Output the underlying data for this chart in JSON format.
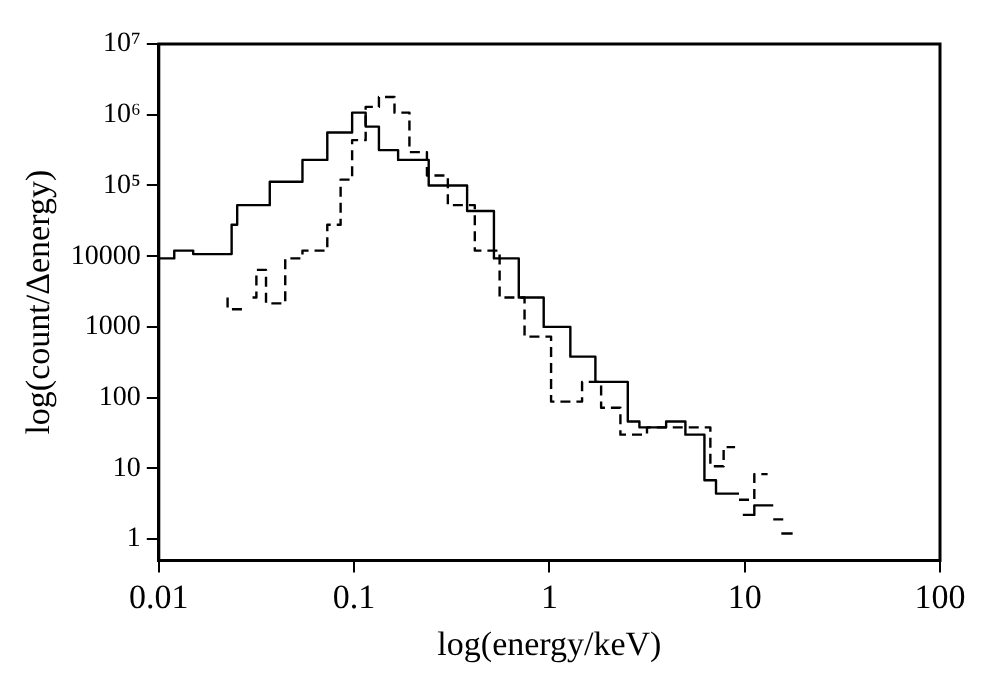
{
  "chart_data": {
    "type": "step",
    "xlabel": "log(energy/keV)",
    "ylabel": "log(count/Δenergy)",
    "log": "xy",
    "grid": false,
    "legend": false,
    "marker": "none",
    "xlim": [
      0.01,
      100
    ],
    "xticks": [
      0.01,
      0.1,
      1,
      10,
      100
    ],
    "ylim": [
      0.5,
      10000000
    ],
    "yticks": [
      1,
      10,
      100,
      1000,
      10000,
      {
        "value": 100000,
        "label": "10⁵"
      },
      {
        "value": 1000000,
        "label": "10⁶"
      },
      {
        "value": 10000000,
        "label": "10⁷"
      }
    ],
    "series": [
      {
        "color": "#000000",
        "line_style": "solid",
        "x": [
          0.01,
          0.012,
          0.015,
          0.0236,
          0.0252,
          0.037,
          0.0544,
          0.0729,
          0.0977,
          0.1146,
          0.134,
          0.168,
          0.241,
          0.379,
          0.52,
          0.697,
          0.935,
          1.28,
          1.72,
          2.52,
          2.89,
          3.96,
          4.97,
          6.22,
          7.13,
          9.35,
          9.78,
          11.2,
          14,
          15.4,
          17.6
        ],
        "values": [
          9300,
          9300,
          12000,
          10700,
          27800,
          52700,
          113000,
          230000,
          560000,
          1070000,
          680000,
          316000,
          230000,
          100000,
          43600,
          9300,
          2600,
          1000,
          380,
          167,
          46,
          38,
          46,
          30,
          6.8,
          4.4,
          null,
          2.2,
          3,
          null,
          1.2
        ]
      },
      {
        "color": "#000000",
        "line_style": "dashed",
        "x": [
          0.0225,
          0.0283,
          0.0302,
          0.0316,
          0.0354,
          0.0444,
          0.0544,
          0.0729,
          0.0853,
          0.0977,
          0.1146,
          0.134,
          0.161,
          0.192,
          0.236,
          0.302,
          0.415,
          0.556,
          0.746,
          1.02,
          1.47,
          1.84,
          2.31,
          3.16,
          4.54,
          6.67,
          7.8,
          8.93,
          9.35,
          11.2,
          13.1,
          14,
          16.4
        ],
        "values": [
          2600,
          1780,
          null,
          2600,
          6400,
          2150,
          9300,
          12000,
          27800,
          121000,
          437000,
          1290000,
          1780000,
          1070000,
          296000,
          138000,
          52700,
          12000,
          2600,
          730,
          88,
          167,
          72,
          30,
          38,
          38,
          10.7,
          20,
          null,
          3.6,
          8.3,
          null,
          1.9
        ]
      }
    ]
  }
}
